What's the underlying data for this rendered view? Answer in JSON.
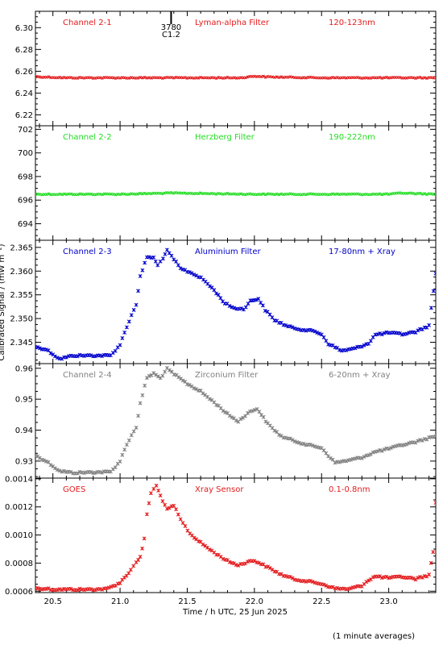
{
  "figure": {
    "xlabel": "Time / h UTC, 25 Jun 2025",
    "ylabel": "Calibrated Signal / (mW m⁻²)",
    "footnote": "(1 minute averages)",
    "marker": {
      "lines": [
        "3780",
        "C1.2"
      ],
      "x": 21.38
    },
    "xlim": [
      20.37,
      23.35
    ],
    "xticks": [
      20.5,
      21.0,
      21.5,
      22.0,
      22.5,
      23.0
    ]
  },
  "chart_data": [
    {
      "type": "scatter",
      "labels": [
        "Channel 2-1",
        "Lyman-alpha Filter",
        "120-123nm"
      ],
      "color": "#e41a1c",
      "ylim": [
        6.21,
        6.315
      ],
      "yticks": [
        6.22,
        6.24,
        6.26,
        6.28,
        6.3
      ],
      "ytick_labels": [
        "6.22",
        "6.24",
        "6.26",
        "6.28",
        "6.30"
      ],
      "series": [
        {
          "points": [
            [
              20.37,
              6.255
            ],
            [
              20.6,
              6.254
            ],
            [
              21.0,
              6.254
            ],
            [
              21.5,
              6.254
            ],
            [
              21.9,
              6.254
            ],
            [
              22.0,
              6.2555
            ],
            [
              22.1,
              6.2548
            ],
            [
              22.5,
              6.254
            ],
            [
              23.0,
              6.254
            ],
            [
              23.35,
              6.254
            ]
          ]
        }
      ]
    },
    {
      "type": "scatter",
      "labels": [
        "Channel 2-2",
        "Herzberg Filter",
        "190-222nm"
      ],
      "color": "#22dd22",
      "ylim": [
        692.6,
        702.3
      ],
      "yticks": [
        694,
        696,
        698,
        700,
        702
      ],
      "ytick_labels": [
        "694",
        "696",
        "698",
        "700",
        "702"
      ],
      "series": [
        {
          "points": [
            [
              20.37,
              696.5
            ],
            [
              21.0,
              696.5
            ],
            [
              21.38,
              696.6
            ],
            [
              22.0,
              696.5
            ],
            [
              22.5,
              696.5
            ],
            [
              23.0,
              696.5
            ],
            [
              23.1,
              696.6
            ],
            [
              23.35,
              696.5
            ]
          ]
        }
      ]
    },
    {
      "type": "scatter",
      "labels": [
        "Channel 2-3",
        "Aluminium Filter",
        "17-80nm + Xray"
      ],
      "color": "#0000cc",
      "ylim": [
        2.3405,
        2.3665
      ],
      "yticks": [
        2.345,
        2.35,
        2.355,
        2.36,
        2.365
      ],
      "ytick_labels": [
        "2.345",
        "2.350",
        "2.355",
        "2.360",
        "2.365"
      ],
      "series": [
        {
          "points": [
            [
              20.37,
              2.344
            ],
            [
              20.45,
              2.3435
            ],
            [
              20.55,
              2.3415
            ],
            [
              20.65,
              2.3422
            ],
            [
              20.8,
              2.3422
            ],
            [
              20.93,
              2.3422
            ],
            [
              21.0,
              2.3445
            ],
            [
              21.05,
              2.3483
            ],
            [
              21.12,
              2.353
            ],
            [
              21.15,
              2.3588
            ],
            [
              21.2,
              2.363
            ],
            [
              21.25,
              2.3628
            ],
            [
              21.28,
              2.3612
            ],
            [
              21.32,
              2.3628
            ],
            [
              21.35,
              2.3643
            ],
            [
              21.4,
              2.3625
            ],
            [
              21.45,
              2.3605
            ],
            [
              21.55,
              2.3594
            ],
            [
              21.62,
              2.3582
            ],
            [
              21.7,
              2.356
            ],
            [
              21.78,
              2.3532
            ],
            [
              21.85,
              2.3522
            ],
            [
              21.92,
              2.352
            ],
            [
              21.97,
              2.3537
            ],
            [
              22.03,
              2.3542
            ],
            [
              22.08,
              2.3518
            ],
            [
              22.15,
              2.3497
            ],
            [
              22.25,
              2.3483
            ],
            [
              22.35,
              2.3477
            ],
            [
              22.45,
              2.3473
            ],
            [
              22.5,
              2.3467
            ],
            [
              22.55,
              2.3447
            ],
            [
              22.65,
              2.3432
            ],
            [
              22.75,
              2.3437
            ],
            [
              22.85,
              2.3448
            ],
            [
              22.9,
              2.3466
            ],
            [
              23.0,
              2.347
            ],
            [
              23.1,
              2.3467
            ],
            [
              23.2,
              2.3472
            ],
            [
              23.3,
              2.3485
            ],
            [
              23.35,
              2.3595
            ]
          ]
        }
      ]
    },
    {
      "type": "scatter",
      "labels": [
        "Channel 2-4",
        "Zirconium Filter",
        "6-20nm + Xray"
      ],
      "color": "#808080",
      "ylim": [
        0.9245,
        0.9615
      ],
      "yticks": [
        0.93,
        0.94,
        0.95,
        0.96
      ],
      "ytick_labels": [
        "0.93",
        "0.94",
        "0.95",
        "0.96"
      ],
      "series": [
        {
          "points": [
            [
              20.37,
              0.9318
            ],
            [
              20.45,
              0.93
            ],
            [
              20.55,
              0.9268
            ],
            [
              20.65,
              0.9262
            ],
            [
              20.8,
              0.9264
            ],
            [
              20.93,
              0.9265
            ],
            [
              21.0,
              0.93
            ],
            [
              21.05,
              0.9355
            ],
            [
              21.12,
              0.941
            ],
            [
              21.15,
              0.9485
            ],
            [
              21.2,
              0.957
            ],
            [
              21.25,
              0.9583
            ],
            [
              21.3,
              0.9568
            ],
            [
              21.35,
              0.9598
            ],
            [
              21.42,
              0.9575
            ],
            [
              21.5,
              0.955
            ],
            [
              21.6,
              0.9525
            ],
            [
              21.7,
              0.949
            ],
            [
              21.8,
              0.9452
            ],
            [
              21.88,
              0.9428
            ],
            [
              21.95,
              0.9455
            ],
            [
              22.02,
              0.947
            ],
            [
              22.1,
              0.942
            ],
            [
              22.2,
              0.938
            ],
            [
              22.3,
              0.9365
            ],
            [
              22.4,
              0.9352
            ],
            [
              22.5,
              0.9343
            ],
            [
              22.55,
              0.9318
            ],
            [
              22.6,
              0.9295
            ],
            [
              22.7,
              0.9302
            ],
            [
              22.8,
              0.9312
            ],
            [
              22.9,
              0.933
            ],
            [
              23.0,
              0.934
            ],
            [
              23.1,
              0.9352
            ],
            [
              23.2,
              0.9362
            ],
            [
              23.3,
              0.9375
            ],
            [
              23.35,
              0.938
            ]
          ]
        }
      ]
    },
    {
      "type": "scatter",
      "labels": [
        "GOES",
        "Xray Sensor",
        "0.1-0.8nm"
      ],
      "color": "#e41a1c",
      "ylim": [
        0.00059,
        0.001405
      ],
      "yticks": [
        0.0006,
        0.0008,
        0.001,
        0.0012,
        0.0014
      ],
      "ytick_labels": [
        "0.0006",
        "0.0008",
        "0.0010",
        "0.0012",
        "0.0014"
      ],
      "series": [
        {
          "points": [
            [
              20.37,
              0.00062
            ],
            [
              20.45,
              0.000618
            ],
            [
              20.5,
              0.000612
            ],
            [
              20.6,
              0.000613
            ],
            [
              20.75,
              0.000612
            ],
            [
              20.9,
              0.000616
            ],
            [
              21.0,
              0.00066
            ],
            [
              21.08,
              0.00075
            ],
            [
              21.12,
              0.00081
            ],
            [
              21.15,
              0.00084
            ],
            [
              21.18,
              0.00097
            ],
            [
              21.2,
              0.00115
            ],
            [
              21.23,
              0.0013
            ],
            [
              21.27,
              0.00135
            ],
            [
              21.3,
              0.00128
            ],
            [
              21.35,
              0.00118
            ],
            [
              21.4,
              0.00121
            ],
            [
              21.45,
              0.00111
            ],
            [
              21.52,
              0.00101
            ],
            [
              21.6,
              0.000945
            ],
            [
              21.7,
              0.000875
            ],
            [
              21.8,
              0.000815
            ],
            [
              21.88,
              0.000785
            ],
            [
              21.95,
              0.00081
            ],
            [
              22.0,
              0.000818
            ],
            [
              22.1,
              0.00077
            ],
            [
              22.2,
              0.000718
            ],
            [
              22.3,
              0.000685
            ],
            [
              22.4,
              0.00067
            ],
            [
              22.5,
              0.000652
            ],
            [
              22.6,
              0.00062
            ],
            [
              22.7,
              0.000615
            ],
            [
              22.8,
              0.00064
            ],
            [
              22.85,
              0.00068
            ],
            [
              22.9,
              0.000705
            ],
            [
              23.0,
              0.000695
            ],
            [
              23.1,
              0.000702
            ],
            [
              23.2,
              0.000688
            ],
            [
              23.3,
              0.000715
            ],
            [
              23.33,
              0.00088
            ],
            [
              23.35,
              0.00123
            ]
          ]
        }
      ]
    }
  ]
}
